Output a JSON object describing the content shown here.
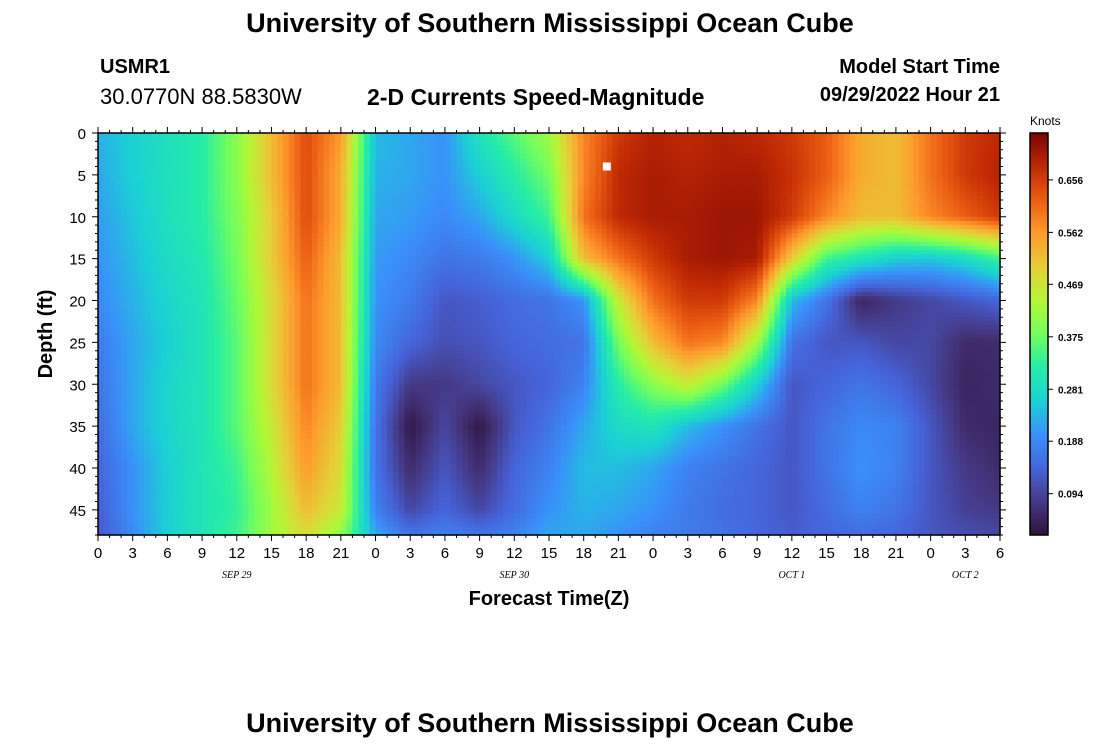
{
  "header": {
    "title": "University of Southern Mississippi Ocean Cube",
    "station_id": "USMR1",
    "station_coords": "30.0770N  88.5830W",
    "subtitle": "2-D Currents Speed-Magnitude",
    "start_label": "Model Start Time",
    "start_value": "09/29/2022 Hour 21"
  },
  "footer": {
    "title": "University of Southern Mississippi Ocean Cube"
  },
  "chart_data": {
    "type": "heatmap",
    "title": "2-D Currents Speed-Magnitude",
    "xlabel": "Forecast Time(Z)",
    "ylabel": "Depth (ft)",
    "x_tick_labels": [
      "0",
      "3",
      "6",
      "9",
      "12",
      "15",
      "18",
      "21",
      "0",
      "3",
      "6",
      "9",
      "12",
      "15",
      "18",
      "21",
      "0",
      "3",
      "6",
      "9",
      "12",
      "15",
      "18",
      "21",
      "0",
      "3",
      "6"
    ],
    "date_labels": [
      {
        "label": "SEP 29",
        "at_hour": 12
      },
      {
        "label": "SEP 30",
        "at_hour": 36
      },
      {
        "label": "OCT 1",
        "at_hour": 60
      },
      {
        "label": "OCT 2",
        "at_hour": 75
      }
    ],
    "xlim_hours": [
      0,
      78
    ],
    "y_ticks": [
      0,
      5,
      10,
      15,
      20,
      25,
      30,
      35,
      40,
      45
    ],
    "ylim": [
      0,
      48
    ],
    "colorbar": {
      "label": "Knots",
      "ticks": [
        0.094,
        0.188,
        0.281,
        0.375,
        0.469,
        0.562,
        0.656
      ],
      "range": [
        0.02,
        0.74
      ]
    },
    "marker": {
      "hour": 44,
      "depth": 4
    },
    "depths": [
      0,
      5,
      10,
      15,
      20,
      25,
      30,
      35,
      40,
      45,
      48
    ],
    "hours": [
      0,
      3,
      6,
      9,
      12,
      15,
      18,
      21,
      24,
      27,
      30,
      33,
      36,
      39,
      42,
      45,
      48,
      51,
      54,
      57,
      60,
      63,
      66,
      69,
      72,
      75,
      78
    ],
    "values": [
      [
        0.23,
        0.26,
        0.29,
        0.32,
        0.4,
        0.52,
        0.64,
        0.56,
        0.24,
        0.22,
        0.2,
        0.3,
        0.36,
        0.42,
        0.58,
        0.66,
        0.69,
        0.68,
        0.69,
        0.68,
        0.66,
        0.62,
        0.54,
        0.52,
        0.6,
        0.66,
        0.68
      ],
      [
        0.22,
        0.26,
        0.29,
        0.32,
        0.4,
        0.52,
        0.64,
        0.54,
        0.23,
        0.22,
        0.2,
        0.26,
        0.32,
        0.38,
        0.58,
        0.68,
        0.7,
        0.69,
        0.7,
        0.7,
        0.67,
        0.62,
        0.54,
        0.52,
        0.6,
        0.66,
        0.69
      ],
      [
        0.21,
        0.25,
        0.29,
        0.32,
        0.39,
        0.5,
        0.64,
        0.54,
        0.22,
        0.21,
        0.19,
        0.22,
        0.28,
        0.34,
        0.6,
        0.68,
        0.7,
        0.7,
        0.71,
        0.71,
        0.66,
        0.58,
        0.52,
        0.52,
        0.58,
        0.62,
        0.66
      ],
      [
        0.2,
        0.24,
        0.28,
        0.31,
        0.38,
        0.5,
        0.62,
        0.52,
        0.21,
        0.19,
        0.16,
        0.17,
        0.2,
        0.26,
        0.52,
        0.6,
        0.66,
        0.7,
        0.71,
        0.7,
        0.5,
        0.34,
        0.3,
        0.26,
        0.25,
        0.28,
        0.34
      ],
      [
        0.19,
        0.23,
        0.27,
        0.3,
        0.37,
        0.48,
        0.6,
        0.52,
        0.2,
        0.17,
        0.12,
        0.13,
        0.15,
        0.16,
        0.2,
        0.46,
        0.6,
        0.66,
        0.66,
        0.58,
        0.24,
        0.16,
        0.05,
        0.08,
        0.1,
        0.12,
        0.14
      ],
      [
        0.17,
        0.22,
        0.26,
        0.3,
        0.36,
        0.48,
        0.6,
        0.52,
        0.19,
        0.14,
        0.11,
        0.12,
        0.14,
        0.15,
        0.16,
        0.38,
        0.52,
        0.6,
        0.58,
        0.42,
        0.16,
        0.12,
        0.12,
        0.1,
        0.1,
        0.06,
        0.06
      ],
      [
        0.16,
        0.22,
        0.27,
        0.3,
        0.36,
        0.48,
        0.6,
        0.52,
        0.17,
        0.08,
        0.08,
        0.1,
        0.12,
        0.14,
        0.18,
        0.32,
        0.4,
        0.46,
        0.38,
        0.26,
        0.12,
        0.14,
        0.16,
        0.14,
        0.1,
        0.05,
        0.06
      ],
      [
        0.15,
        0.22,
        0.27,
        0.3,
        0.36,
        0.46,
        0.58,
        0.5,
        0.16,
        0.03,
        0.1,
        0.03,
        0.12,
        0.16,
        0.22,
        0.28,
        0.3,
        0.24,
        0.2,
        0.16,
        0.12,
        0.16,
        0.19,
        0.18,
        0.12,
        0.06,
        0.05
      ],
      [
        0.14,
        0.2,
        0.26,
        0.3,
        0.34,
        0.44,
        0.56,
        0.48,
        0.16,
        0.06,
        0.12,
        0.06,
        0.14,
        0.18,
        0.24,
        0.24,
        0.22,
        0.18,
        0.16,
        0.14,
        0.12,
        0.16,
        0.2,
        0.18,
        0.12,
        0.08,
        0.06
      ],
      [
        0.13,
        0.2,
        0.26,
        0.3,
        0.33,
        0.42,
        0.52,
        0.46,
        0.18,
        0.1,
        0.14,
        0.1,
        0.15,
        0.2,
        0.23,
        0.22,
        0.2,
        0.17,
        0.15,
        0.14,
        0.12,
        0.15,
        0.18,
        0.16,
        0.12,
        0.09,
        0.08
      ],
      [
        0.12,
        0.19,
        0.26,
        0.3,
        0.34,
        0.42,
        0.48,
        0.4,
        0.22,
        0.16,
        0.18,
        0.16,
        0.18,
        0.22,
        0.22,
        0.2,
        0.18,
        0.17,
        0.16,
        0.14,
        0.13,
        0.14,
        0.15,
        0.14,
        0.12,
        0.11,
        0.1
      ]
    ]
  }
}
